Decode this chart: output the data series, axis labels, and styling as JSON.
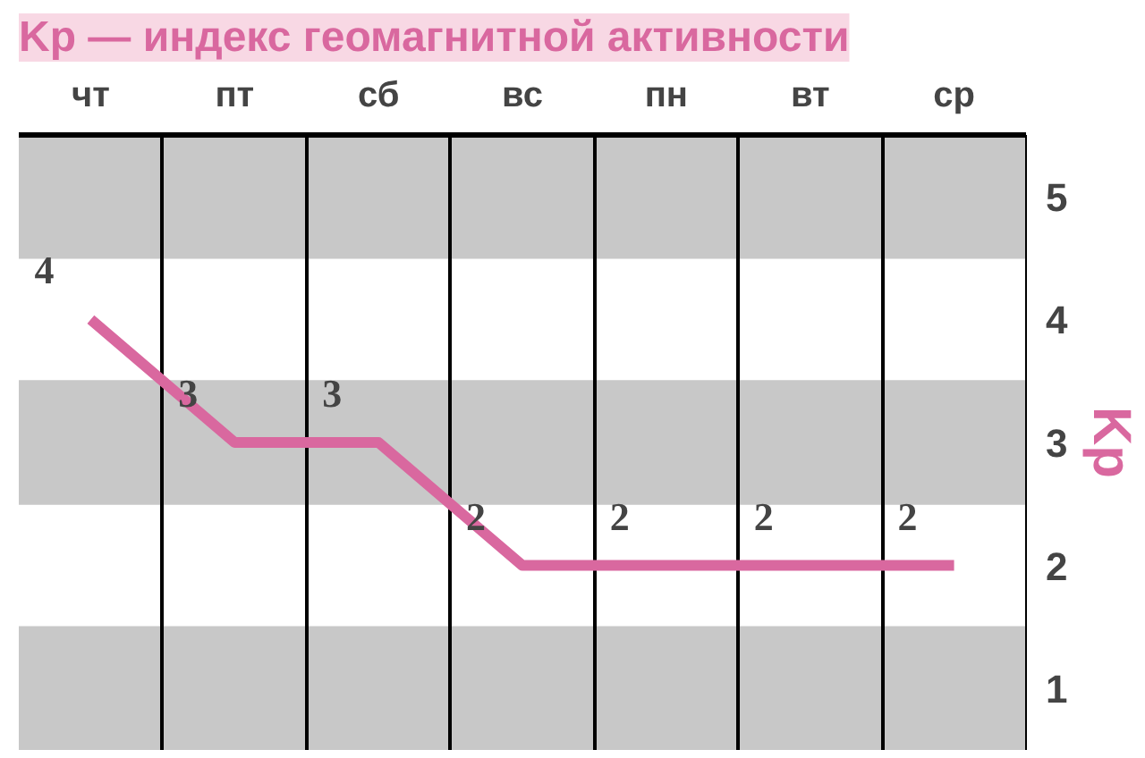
{
  "chart_data": {
    "type": "line",
    "title": "Kp — индекс геомагнитной активности",
    "ylabel": "Kp",
    "categories": [
      "чт",
      "пт",
      "сб",
      "вс",
      "пн",
      "вт",
      "ср"
    ],
    "series": [
      {
        "color": "#d9689f",
        "values": [
          4,
          3,
          3,
          2,
          2,
          2,
          2
        ]
      }
    ],
    "ylim": [
      0.5,
      5.5
    ],
    "yticks": [
      1,
      2,
      3,
      4,
      5
    ],
    "grid": "x",
    "data_labels": true,
    "marker": "none",
    "line_style": "solid",
    "bands": [
      {
        "axis": "y",
        "from": 4.5,
        "to": 5.5,
        "color": "#c8c8c8"
      },
      {
        "axis": "y",
        "from": 2.5,
        "to": 3.5,
        "color": "#c8c8c8"
      },
      {
        "axis": "y",
        "from": 0.5,
        "to": 1.5,
        "color": "#c8c8c8"
      }
    ]
  }
}
